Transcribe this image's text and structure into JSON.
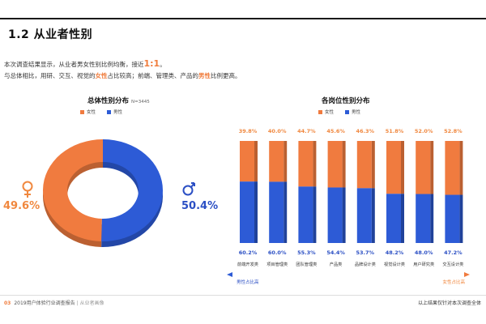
{
  "section_title": "1.2 从业者性别",
  "intro": {
    "line1_prefix": "本次调查结果显示，从业者男女性别比例均衡，接近",
    "line1_ratio": "1:1",
    "line1_suffix": "。",
    "line2_a": "与总体相比，用研、交互、视觉的",
    "line2_female": "女性",
    "line2_b": "占比较高；前端、管理类、产品的",
    "line2_male": "男性",
    "line2_c": "比例更高。"
  },
  "legend": {
    "female": "女性",
    "male": "男性"
  },
  "colors": {
    "female": "#f07b3f",
    "male": "#2d5bd6",
    "female_label": "#f0883f",
    "male_label": "#2b4fc4"
  },
  "chart_data": [
    {
      "type": "pie",
      "title": "总体性别分布",
      "note": "N=3445",
      "labels": [
        "女性",
        "男性"
      ],
      "values": [
        49.6,
        50.4
      ],
      "value_labels": [
        "49.6%",
        "50.4%"
      ],
      "icons": [
        "female-symbol-icon",
        "male-symbol-icon"
      ],
      "donut": true
    },
    {
      "type": "bar",
      "stacked": true,
      "title": "各岗位性别分布",
      "categories": [
        "前端开发类",
        "项目管理类",
        "团队管理类",
        "产品类",
        "品牌设计类",
        "视觉设计类",
        "用户研究类",
        "交互设计类"
      ],
      "series": [
        {
          "name": "女性",
          "values": [
            39.8,
            40.0,
            44.7,
            45.6,
            46.3,
            51.8,
            52.0,
            52.8
          ]
        },
        {
          "name": "男性",
          "values": [
            60.2,
            60.0,
            55.3,
            54.4,
            53.7,
            48.2,
            48.0,
            47.2
          ]
        }
      ],
      "female_labels": [
        "39.8%",
        "40.0%",
        "44.7%",
        "45.6%",
        "46.3%",
        "51.8%",
        "52.0%",
        "52.8%"
      ],
      "male_labels": [
        "60.2%",
        "60.0%",
        "55.3%",
        "54.4%",
        "53.7%",
        "48.2%",
        "48.0%",
        "47.2%"
      ],
      "ylim": [
        0,
        100
      ],
      "arrow_left_label": "男性占比高",
      "arrow_right_label": "女性占比高"
    }
  ],
  "footer": {
    "page": "03",
    "report": "2019用户体验行业调查报告",
    "section": "| 从业者画像",
    "note": "以上结果仅针对本次调查全体"
  }
}
